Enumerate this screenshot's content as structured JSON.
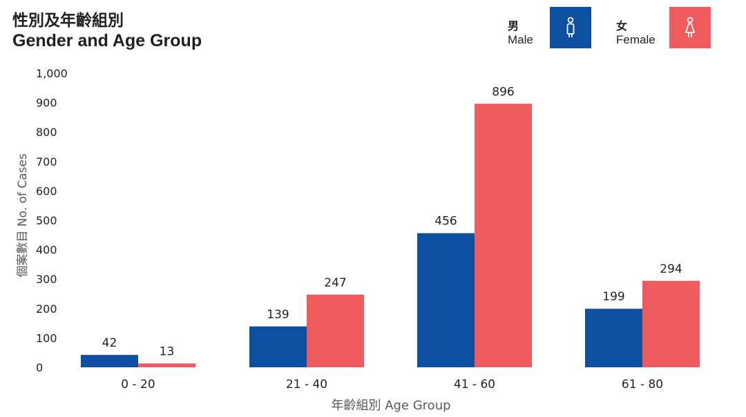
{
  "title_zh": "性別及年齡組別",
  "title_en": "Gender and Age Group",
  "legend": [
    {
      "zh": "男",
      "en": "Male",
      "color": "#0d4fa0",
      "icon": "male-person-icon"
    },
    {
      "zh": "女",
      "en": "Female",
      "color": "#ef5a5f",
      "icon": "female-person-icon"
    }
  ],
  "chart_data": {
    "type": "bar",
    "categories": [
      "0 - 20",
      "21 - 40",
      "41 - 60",
      "61 - 80"
    ],
    "series": [
      {
        "name": "男 Male",
        "values": [
          42,
          139,
          456,
          199
        ],
        "color": "#0d4fa0"
      },
      {
        "name": "女 Female",
        "values": [
          13,
          247,
          896,
          294
        ],
        "color": "#ef5a5f"
      }
    ],
    "title": "性別及年齡組別 Gender and Age Group",
    "xlabel": "年齡組別 Age Group",
    "ylabel": "個案數目 No. of Cases",
    "ylim": [
      0,
      1000
    ],
    "yticks": [
      "0",
      "100",
      "200",
      "300",
      "400",
      "500",
      "600",
      "700",
      "800",
      "900",
      "1,000"
    ],
    "grid": false,
    "legend_position": "top-right"
  }
}
